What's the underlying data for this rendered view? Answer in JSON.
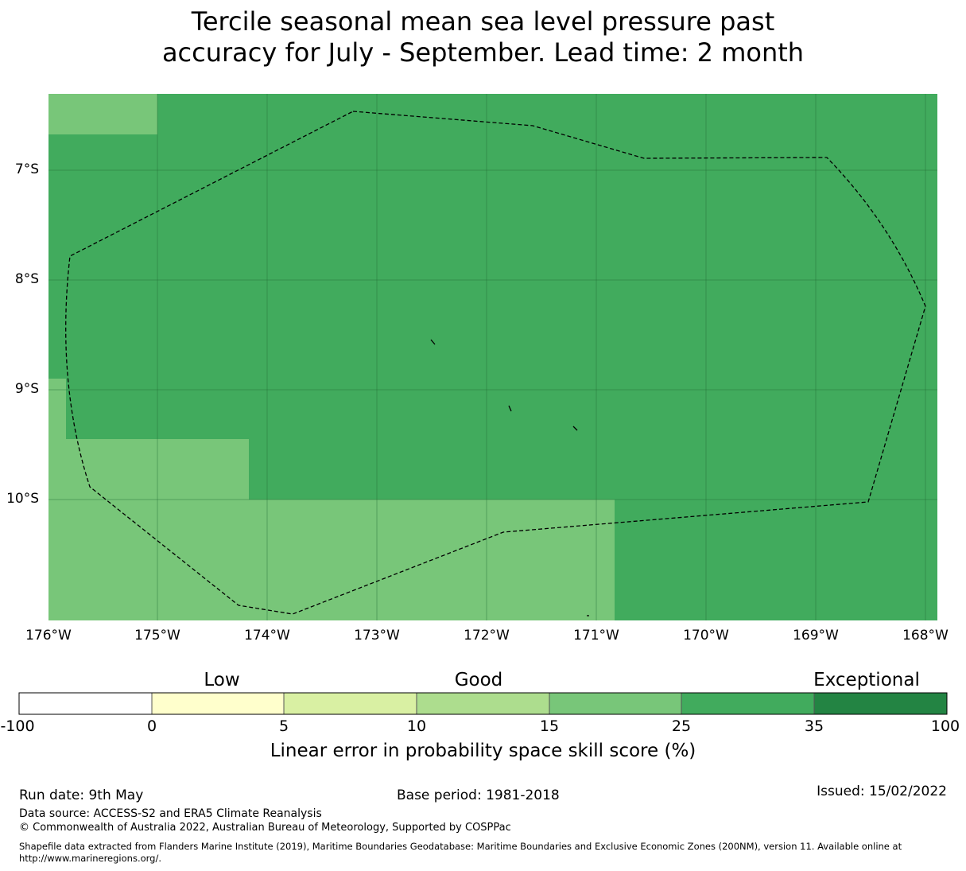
{
  "title": {
    "line1": "Tercile seasonal mean sea level pressure past",
    "line2": "accuracy for July - September. Lead time: 2 month"
  },
  "map": {
    "lat_labels": [
      "7°S",
      "8°S",
      "9°S",
      "10°S"
    ],
    "lon_labels": [
      "176°W",
      "175°W",
      "174°W",
      "173°W",
      "172°W",
      "171°W",
      "170°W",
      "169°W",
      "168°W"
    ],
    "extent": {
      "lon": [
        -176,
        -167.9
      ],
      "lat": [
        -6.3,
        -11.1
      ]
    },
    "colors": {
      "25-35": "#41ab5d",
      "15-25": "#78c679"
    },
    "grid": true,
    "boundary_style": "dashed black line"
  },
  "colorbar": {
    "categories": [
      "Low",
      "Good",
      "Exceptional"
    ],
    "ticks": [
      "-100",
      "0",
      "5",
      "10",
      "15",
      "25",
      "35",
      "100"
    ],
    "colors": [
      "#ffffff",
      "#ffffcc",
      "#d9f0a3",
      "#addd8e",
      "#78c679",
      "#41ab5d",
      "#238443"
    ],
    "label": "Linear error in probability space skill score (%)"
  },
  "footer": {
    "run_date": "Run date: 9th May",
    "base_period": "Base period: 1981-2018",
    "issued": "Issued: 15/02/2022",
    "data_source": "Data source: ACCESS-S2 and ERA5 Climate Reanalysis",
    "copyright": "© Commonwealth of Australia 2022, Australian Bureau of Meteorology, Supported by COSPPac",
    "shapefile_line1": "Shapefile data extracted from Flanders Marine Institute (2019), Maritime Boundaries Geodatabase: Maritime Boundaries and Exclusive Economic Zones (200NM), version 11. Available online at",
    "shapefile_line2": "http://www.marineregions.org/."
  }
}
